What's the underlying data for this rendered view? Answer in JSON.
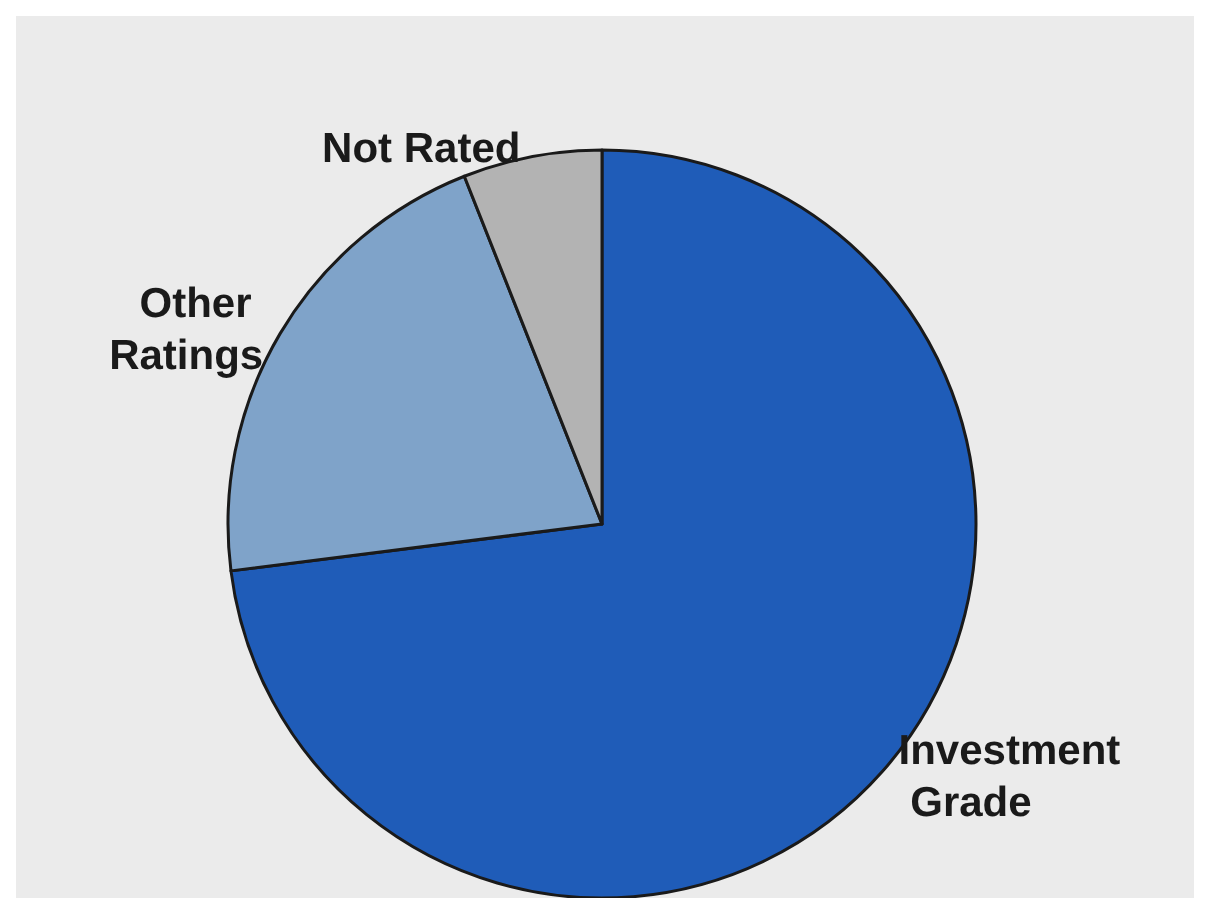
{
  "chart_data": {
    "type": "pie",
    "categories": [
      "Investment Grade",
      "Other Ratings",
      "Not Rated"
    ],
    "values": [
      73,
      21,
      6
    ],
    "colors": [
      "#1f5cb8",
      "#7fa3c9",
      "#b3b3b3"
    ]
  }
}
